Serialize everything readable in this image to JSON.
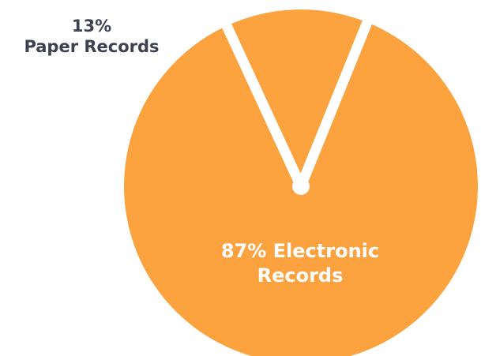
{
  "chart_data": {
    "type": "pie",
    "slices": [
      {
        "name": "Paper Records",
        "value": 13,
        "label_lines": [
          "13%",
          "Paper Records"
        ],
        "color": "#fca23f",
        "label_color": "#3d4152"
      },
      {
        "name": "Electronic Records",
        "value": 87,
        "label_lines": [
          "87% Electronic",
          "Records"
        ],
        "color": "#fca23f",
        "label_color": "#ffffff"
      }
    ],
    "separator_color": "#ffffff",
    "legend": "none"
  }
}
